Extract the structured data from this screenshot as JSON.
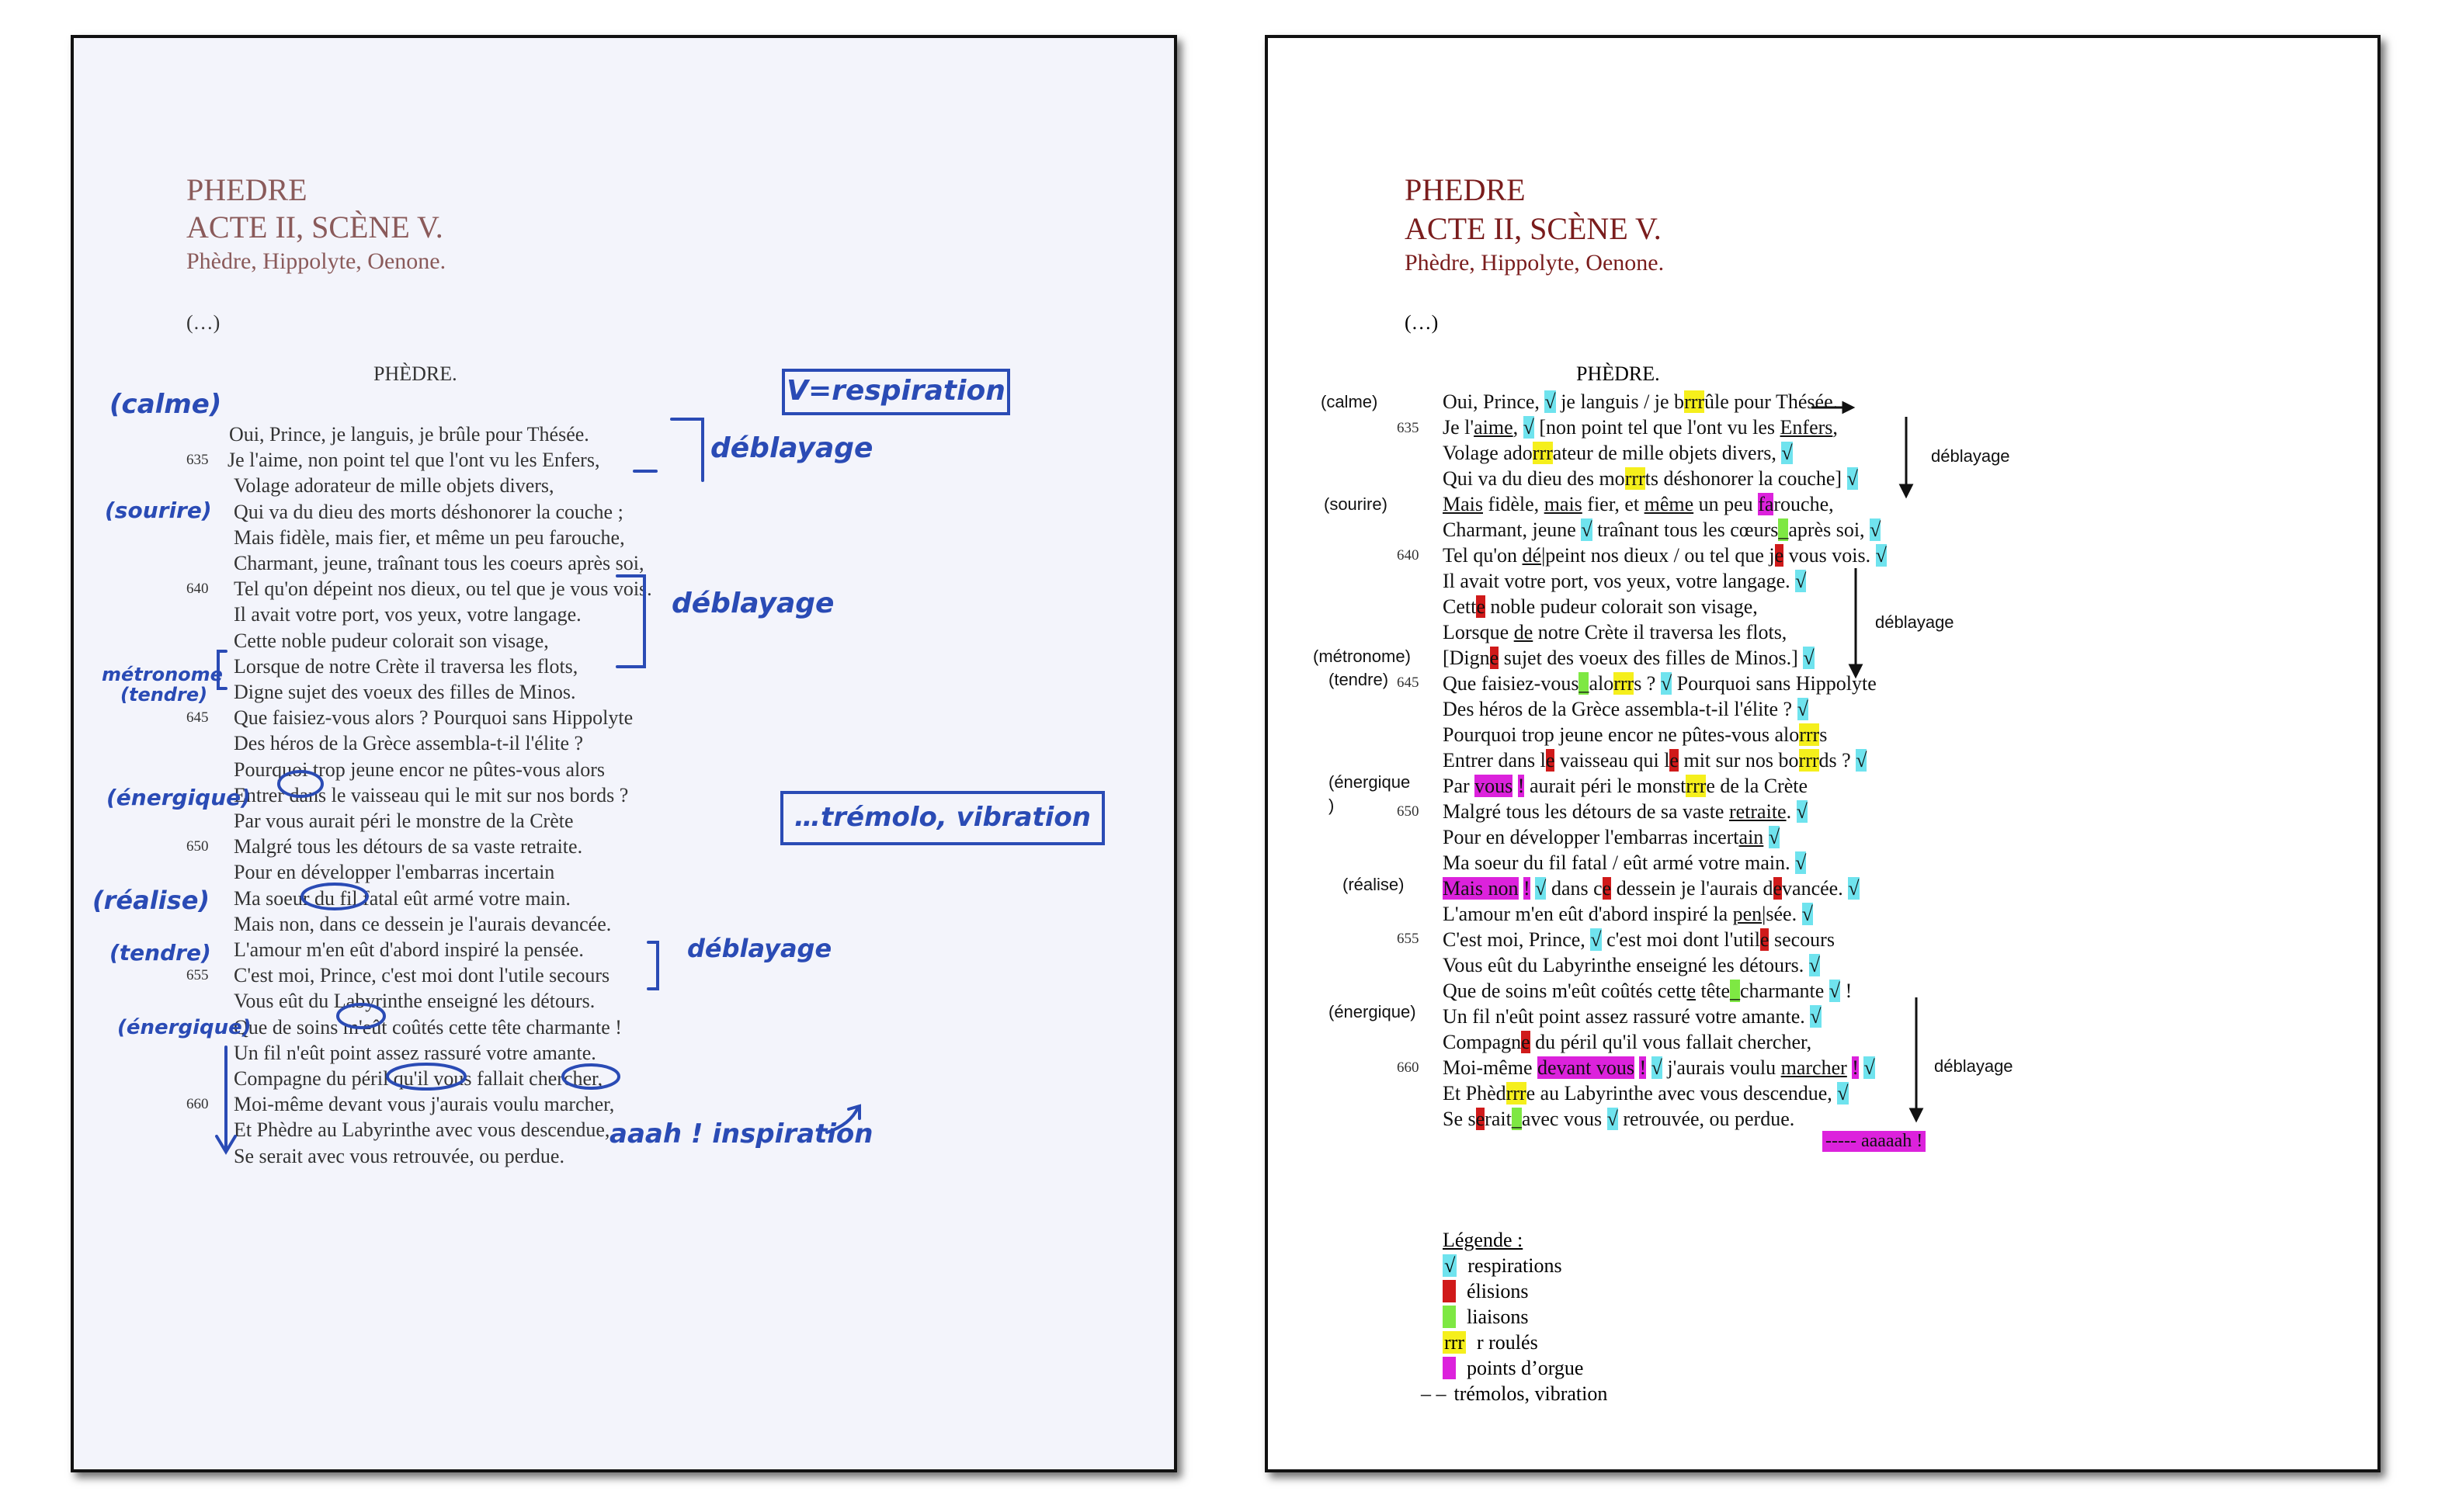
{
  "left": {
    "title": "PHEDRE",
    "act": "ACTE II, SCÈNE V.",
    "characters": "Phèdre, Hippolyte, Oenone.",
    "ellipsis": "(…)",
    "speaker": "PHÈDRE.",
    "verses": [
      {
        "num": "",
        "text": "Oui, Prince, je languis, je brûle pour Thésée."
      },
      {
        "num": "635",
        "text": "Je l'aime, non point tel que l'ont vu les Enfers,"
      },
      {
        "num": "",
        "text": "Volage adorateur de mille objets divers,"
      },
      {
        "num": "",
        "text": "Qui va du dieu des morts déshonorer la couche ;"
      },
      {
        "num": "",
        "text": "Mais fidèle, mais fier, et même un peu farouche,"
      },
      {
        "num": "",
        "text": "Charmant, jeune, traînant tous les coeurs après soi,"
      },
      {
        "num": "640",
        "text": "Tel qu'on dépeint nos dieux, ou tel que je vous vois."
      },
      {
        "num": "",
        "text": "Il avait votre port, vos yeux, votre langage."
      },
      {
        "num": "",
        "text": "Cette noble pudeur colorait son visage,"
      },
      {
        "num": "",
        "text": "Lorsque de notre Crète il traversa les flots,"
      },
      {
        "num": "",
        "text": "Digne sujet des voeux des filles de Minos."
      },
      {
        "num": "645",
        "text": "Que faisiez-vous alors ? Pourquoi sans Hippolyte"
      },
      {
        "num": "",
        "text": "Des héros de la Grèce assembla-t-il l'élite ?"
      },
      {
        "num": "",
        "text": "Pourquoi trop jeune encor ne pûtes-vous alors"
      },
      {
        "num": "",
        "text": "Entrer dans le vaisseau qui le mit sur nos bords ?"
      },
      {
        "num": "",
        "text": "Par vous aurait péri le monstre de la Crète"
      },
      {
        "num": "650",
        "text": "Malgré tous les détours de sa vaste retraite."
      },
      {
        "num": "",
        "text": "Pour en développer l'embarras incertain"
      },
      {
        "num": "",
        "text": "Ma soeur du fil fatal eût armé votre main."
      },
      {
        "num": "",
        "text": "Mais non, dans ce dessein je l'aurais devancée."
      },
      {
        "num": "",
        "text": "L'amour m'en eût d'abord inspiré la pensée."
      },
      {
        "num": "655",
        "text": "C'est moi, Prince, c'est moi dont l'utile secours"
      },
      {
        "num": "",
        "text": "Vous eût du Labyrinthe enseigné les détours."
      },
      {
        "num": "",
        "text": "Que de soins m'eût coûtés cette tête charmante !"
      },
      {
        "num": "",
        "text": "Un fil n'eût point assez rassuré votre amante."
      },
      {
        "num": "",
        "text": "Compagne du péril qu'il vous fallait chercher,"
      },
      {
        "num": "660",
        "text": "Moi-même devant vous j'aurais voulu marcher,"
      },
      {
        "num": "",
        "text": "Et Phèdre au Labyrinthe avec vous descendue,"
      },
      {
        "num": "",
        "text": "Se serait avec vous retrouvée, ou perdue."
      }
    ],
    "annotations": {
      "calme": "(calme)",
      "sourire": "(sourire)",
      "metronome": "métronome",
      "tendre1": "(tendre)",
      "energique1": "(énergique)",
      "realise": "(réalise)",
      "tendre2": "(tendre)",
      "energique2": "(énergique)",
      "key": "V=respiration",
      "deblayage1": "déblayage",
      "deblayage2": "déblayage",
      "deblayage3": "déblayage",
      "tremolo": "…trémolo, vibration",
      "inspiration": "aaah ! inspiration"
    },
    "ink_color": "#2a4bb5"
  },
  "right": {
    "title": "PHEDRE",
    "act": "ACTE II, SCÈNE V.",
    "characters": "Phèdre, Hippolyte, Oenone.",
    "ellipsis": "(…)",
    "speaker": "PHÈDRE.",
    "margin_notes": {
      "calme": "(calme)",
      "sourire": "(sourire)",
      "metronome": "(métronome)",
      "tendre": "(tendre)",
      "energique1_a": "(énergique",
      "energique1_b": ")",
      "realise": "(réalise)",
      "energique2": "(énergique)"
    },
    "deblayage": [
      "déblayage",
      "déblayage",
      "déblayage"
    ],
    "line_numbers": [
      "635",
      "640",
      "645",
      "650",
      "655",
      "660"
    ],
    "final_mark": "----- aaaaah !",
    "legend": {
      "title": "Légende :",
      "items": [
        {
          "symbol": "√",
          "label": "respirations",
          "color": "#6fe3ee"
        },
        {
          "symbol": "",
          "label": "élisions",
          "color": "#d01a1a"
        },
        {
          "symbol": "",
          "label": "liaisons",
          "color": "#7ee843"
        },
        {
          "symbol": "rrr",
          "label": "r roulés",
          "color": "#f5ef1c"
        },
        {
          "symbol": "",
          "label": "points d’orgue",
          "color": "#dc22dc"
        },
        {
          "symbol": "– –",
          "label": "trémolos, vibration",
          "color": ""
        }
      ]
    },
    "colors": {
      "respiration": "#6fe3ee",
      "elision": "#d01a1a",
      "liaison": "#7ee843",
      "r_roule": "#f5ef1c",
      "point_orgue": "#dc22dc",
      "title": "#7a1d1d"
    }
  }
}
